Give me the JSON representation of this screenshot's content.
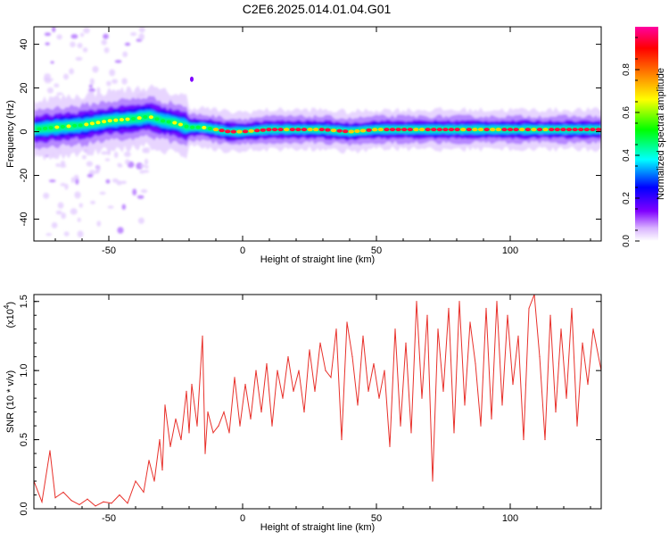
{
  "title": "C2E6.2025.014.01.04.G01",
  "chart_data": [
    {
      "type": "heatmap",
      "xlabel": "Height of straight line (km)",
      "ylabel": "Frequency (Hz)",
      "xlim": [
        -78,
        134
      ],
      "ylim": [
        -50,
        48
      ],
      "xticks": [
        "-50",
        "0",
        "50",
        "100"
      ],
      "yticks": [
        "-40",
        "-20",
        "0",
        "20",
        "40"
      ],
      "grid": false,
      "ridge": {
        "x": [
          -78,
          -70,
          -60,
          -50,
          -40,
          -35,
          -30,
          -25,
          -20,
          -15,
          -10,
          -5,
          0,
          10,
          20,
          30,
          40,
          50,
          60,
          70,
          80,
          90,
          100,
          110,
          120,
          134
        ],
        "y": [
          1,
          2,
          3,
          5,
          6,
          7,
          5,
          4,
          2,
          2,
          1,
          0,
          0,
          1,
          1,
          1,
          0,
          1,
          1,
          1,
          1,
          1,
          1,
          1,
          1,
          1
        ]
      },
      "colorbar": {
        "label": "Normalized spectral amplitude",
        "range": [
          0.0,
          1.0
        ],
        "ticks": [
          "0.0",
          "0.2",
          "0.4",
          "0.6",
          "0.8"
        ],
        "colors": [
          "#ffffff",
          "#d9b3ff",
          "#8000ff",
          "#0000ff",
          "#00ffff",
          "#00ff00",
          "#ffff00",
          "#ff8000",
          "#ff0000",
          "#ff00a0"
        ]
      },
      "series_color": "#e0302e"
    },
    {
      "type": "line",
      "xlabel": "Height of straight line (km)",
      "ylabel": "SNR (10 * v/v)",
      "multiplier": "(x10",
      "multiplier_exp": "4",
      "xlim": [
        -78,
        134
      ],
      "ylim": [
        0,
        1.55
      ],
      "xticks": [
        "-50",
        "0",
        "50",
        "100"
      ],
      "yticks": [
        "0.0",
        "0.5",
        "1.0",
        "1.5"
      ],
      "grid": false,
      "color": "#e8302a",
      "x": [
        -78,
        -75,
        -72,
        -70,
        -67,
        -64,
        -61,
        -58,
        -55,
        -52,
        -49,
        -46,
        -43,
        -40,
        -37,
        -35,
        -33,
        -31,
        -30,
        -29,
        -27,
        -25,
        -23,
        -21,
        -20,
        -19,
        -17,
        -15,
        -14,
        -13,
        -11,
        -9,
        -7,
        -5,
        -3,
        -1,
        1,
        3,
        5,
        7,
        9,
        11,
        13,
        15,
        17,
        19,
        21,
        23,
        25,
        27,
        29,
        31,
        33,
        35,
        37,
        39,
        41,
        43,
        45,
        47,
        49,
        51,
        53,
        55,
        57,
        59,
        61,
        63,
        65,
        67,
        69,
        71,
        73,
        75,
        77,
        79,
        81,
        83,
        85,
        87,
        89,
        91,
        93,
        95,
        97,
        99,
        101,
        103,
        105,
        107,
        109,
        111,
        113,
        115,
        117,
        119,
        121,
        123,
        125,
        127,
        129,
        131,
        134
      ],
      "y": [
        0.2,
        0.05,
        0.42,
        0.08,
        0.12,
        0.06,
        0.03,
        0.07,
        0.02,
        0.05,
        0.04,
        0.1,
        0.04,
        0.2,
        0.12,
        0.35,
        0.2,
        0.5,
        0.28,
        0.75,
        0.45,
        0.65,
        0.5,
        0.85,
        0.55,
        0.9,
        0.6,
        1.25,
        0.4,
        0.7,
        0.55,
        0.6,
        0.7,
        0.55,
        0.95,
        0.6,
        0.9,
        0.65,
        1.0,
        0.7,
        1.05,
        0.6,
        1.0,
        0.8,
        1.1,
        0.85,
        1.0,
        0.7,
        1.15,
        0.85,
        1.2,
        1.0,
        0.95,
        1.3,
        0.5,
        1.35,
        1.1,
        0.75,
        1.25,
        0.85,
        1.05,
        0.8,
        1.0,
        0.45,
        1.3,
        0.6,
        1.2,
        0.55,
        1.5,
        0.8,
        1.4,
        0.2,
        1.3,
        0.85,
        1.45,
        0.55,
        1.5,
        0.75,
        1.35,
        1.05,
        0.6,
        1.45,
        0.65,
        1.5,
        0.75,
        1.4,
        0.9,
        1.25,
        0.5,
        1.45,
        1.55,
        1.1,
        0.5,
        1.4,
        0.7,
        1.3,
        0.8,
        1.45,
        0.6,
        1.2,
        0.9,
        1.3,
        1.0
      ]
    }
  ]
}
